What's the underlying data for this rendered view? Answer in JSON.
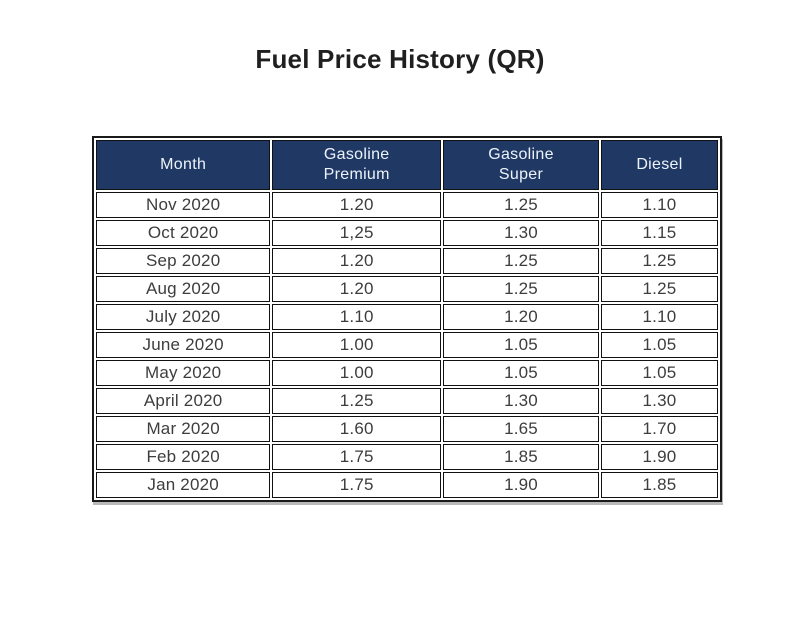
{
  "page": {
    "title": "Fuel Price History (QR)"
  },
  "colors": {
    "header_bg": "#1f3864",
    "header_text": "#eef3fb",
    "cell_text": "#3d3d3d",
    "border": "#111111",
    "page_bg": "#ffffff"
  },
  "table": {
    "columns": [
      "Month",
      "Gasoline\nPremium",
      "Gasoline\nSuper",
      "Diesel"
    ],
    "rows": [
      {
        "month": "Nov 2020",
        "premium": "1.20",
        "super": "1.25",
        "diesel": "1.10"
      },
      {
        "month": "Oct 2020",
        "premium": "1,25",
        "super": "1.30",
        "diesel": "1.15"
      },
      {
        "month": "Sep 2020",
        "premium": "1.20",
        "super": "1.25",
        "diesel": "1.25"
      },
      {
        "month": "Aug 2020",
        "premium": "1.20",
        "super": "1.25",
        "diesel": "1.25"
      },
      {
        "month": "July 2020",
        "premium": "1.10",
        "super": "1.20",
        "diesel": "1.10"
      },
      {
        "month": "June 2020",
        "premium": "1.00",
        "super": "1.05",
        "diesel": "1.05"
      },
      {
        "month": "May 2020",
        "premium": "1.00",
        "super": "1.05",
        "diesel": "1.05"
      },
      {
        "month": "April 2020",
        "premium": "1.25",
        "super": "1.30",
        "diesel": "1.30"
      },
      {
        "month": "Mar 2020",
        "premium": "1.60",
        "super": "1.65",
        "diesel": "1.70"
      },
      {
        "month": "Feb 2020",
        "premium": "1.75",
        "super": "1.85",
        "diesel": "1.90"
      },
      {
        "month": "Jan 2020",
        "premium": "1.75",
        "super": "1.90",
        "diesel": "1.85"
      }
    ]
  },
  "chart_data": {
    "type": "table",
    "title": "Fuel Price History (QR)",
    "categories": [
      "Nov 2020",
      "Oct 2020",
      "Sep 2020",
      "Aug 2020",
      "July 2020",
      "June 2020",
      "May 2020",
      "April 2020",
      "Mar 2020",
      "Feb 2020",
      "Jan 2020"
    ],
    "series": [
      {
        "name": "Gasoline Premium",
        "values": [
          1.2,
          1.25,
          1.2,
          1.2,
          1.1,
          1.0,
          1.0,
          1.25,
          1.6,
          1.75,
          1.75
        ]
      },
      {
        "name": "Gasoline Super",
        "values": [
          1.25,
          1.3,
          1.25,
          1.25,
          1.2,
          1.05,
          1.05,
          1.3,
          1.65,
          1.85,
          1.9
        ]
      },
      {
        "name": "Diesel",
        "values": [
          1.1,
          1.15,
          1.25,
          1.25,
          1.1,
          1.05,
          1.05,
          1.3,
          1.7,
          1.9,
          1.85
        ]
      }
    ]
  }
}
